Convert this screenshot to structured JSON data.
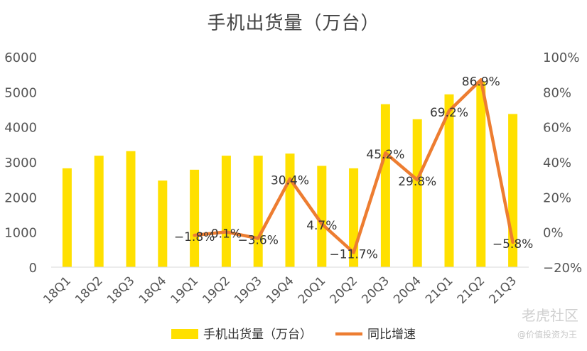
{
  "chart_data": {
    "type": "bar",
    "title": "手机出货量（万台）",
    "categories": [
      "18Q1",
      "18Q2",
      "18Q3",
      "18Q4",
      "19Q1",
      "19Q2",
      "19Q3",
      "19Q4",
      "20Q1",
      "20Q2",
      "20Q3",
      "20Q4",
      "21Q1",
      "21Q2",
      "21Q3"
    ],
    "series": [
      {
        "name": "手机出货量（万台）",
        "type": "bar",
        "axis": "left",
        "color": "#FFE000",
        "values": [
          2820,
          3180,
          3310,
          2470,
          2780,
          3180,
          3180,
          3240,
          2890,
          2820,
          4650,
          4220,
          4930,
          5300,
          4370
        ]
      },
      {
        "name": "同比增速",
        "type": "line",
        "axis": "right",
        "color": "#ED7D31",
        "values": [
          null,
          null,
          null,
          null,
          -1.8,
          0.1,
          -3.6,
          30.4,
          4.7,
          -11.7,
          45.2,
          29.8,
          69.2,
          86.9,
          -5.8
        ],
        "labels": [
          "",
          "",
          "",
          "",
          "−1.8%",
          "0.1%",
          "−3.6%",
          "30.4%",
          "4.7%",
          "−11.7%",
          "45.2%",
          "29.8%",
          "69.2%",
          "86.9%",
          "−5.8%"
        ]
      }
    ],
    "y_left": {
      "min": 0,
      "max": 6000,
      "ticks": [
        "0",
        "1000",
        "2000",
        "3000",
        "4000",
        "5000",
        "6000"
      ]
    },
    "y_right": {
      "min": -20,
      "max": 100,
      "ticks": [
        "−20%",
        "0%",
        "20%",
        "40%",
        "60%",
        "80%",
        "100%"
      ]
    },
    "grid": false,
    "legend": "bottom"
  },
  "watermark": {
    "main": "老虎社区",
    "sub": "@价值投资为王"
  }
}
